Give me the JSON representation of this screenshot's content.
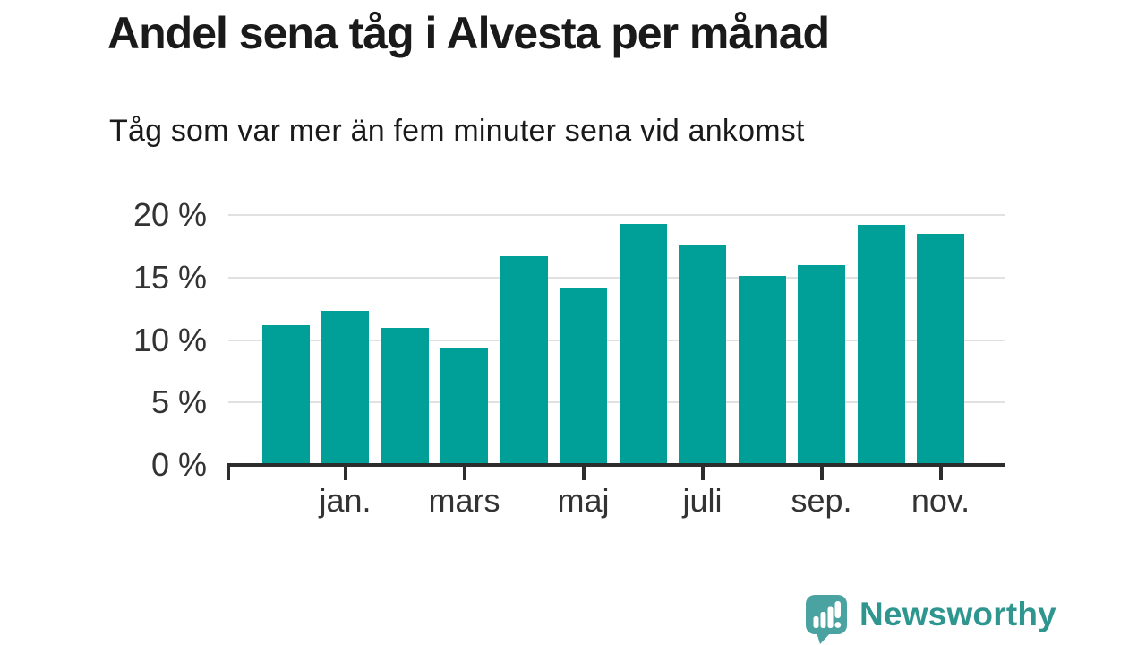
{
  "title": "Andel sena tåg i Alvesta per månad",
  "subtitle": "Tåg som var mer än fem minuter sena vid ankomst",
  "chart_data": {
    "type": "bar",
    "values": [
      11.2,
      12.3,
      11.0,
      9.3,
      16.7,
      14.1,
      19.3,
      17.6,
      15.1,
      16.0,
      19.2,
      18.5
    ],
    "bar_count": 12,
    "x_ticks": [
      {
        "bar_index": 1,
        "label": "jan."
      },
      {
        "bar_index": 3,
        "label": "mars"
      },
      {
        "bar_index": 5,
        "label": "maj"
      },
      {
        "bar_index": 7,
        "label": "juli"
      },
      {
        "bar_index": 9,
        "label": "sep."
      },
      {
        "bar_index": 11,
        "label": "nov."
      }
    ],
    "y_ticks": [
      {
        "value": 0,
        "label": "0 %"
      },
      {
        "value": 5,
        "label": "5 %"
      },
      {
        "value": 10,
        "label": "10 %"
      },
      {
        "value": 15,
        "label": "15 %"
      },
      {
        "value": 20,
        "label": "20 %"
      }
    ],
    "ylim": [
      0,
      20.6
    ],
    "grid": "horizontal-only",
    "legend": "none",
    "title": "Andel sena tåg i Alvesta per månad",
    "subtitle": "Tåg som var mer än fem minuter sena vid ankomst"
  },
  "colors": {
    "background": "#FFFFFF",
    "bar": "#00A099",
    "axis": "#2D2D2D",
    "gridline": "#E1E1E1",
    "title_text": "#1A1A1A",
    "tick_label_text": "#333333",
    "logo_bubble": "#4AA3A0",
    "logo_text": "#2F968F"
  },
  "branding": {
    "logo_text": "Newsworthy",
    "logo_icon": "speech-bubble-with-bar-chart-and-exclamation"
  }
}
